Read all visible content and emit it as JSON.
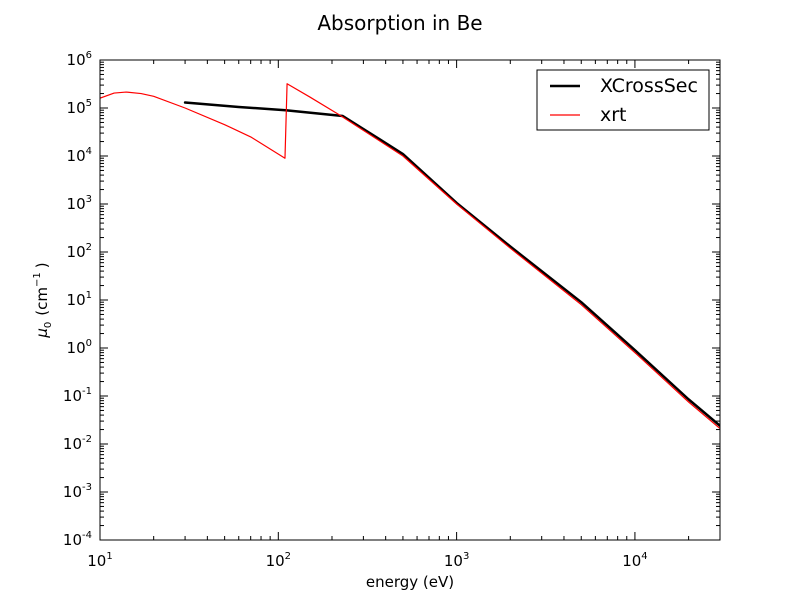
{
  "chart_data": {
    "type": "line",
    "title": "Absorption in Be",
    "xlabel": "energy (eV)",
    "ylabel": {
      "prefix": "μ",
      "subscript": "0",
      "unit": "(cm",
      "unit_exp": "−1",
      "unit_close": ")"
    },
    "x_scale": "log",
    "y_scale": "log",
    "xlim": [
      10,
      30000
    ],
    "ylim": [
      0.0001,
      1000000
    ],
    "grid": false,
    "legend_position": "top-right",
    "xticks": [
      {
        "value": 10,
        "base": "10",
        "exp": "1"
      },
      {
        "value": 100,
        "base": "10",
        "exp": "2"
      },
      {
        "value": 1000,
        "base": "10",
        "exp": "3"
      },
      {
        "value": 10000,
        "base": "10",
        "exp": "4"
      }
    ],
    "yticks": [
      {
        "value": 0.0001,
        "base": "10",
        "exp": "-4"
      },
      {
        "value": 0.001,
        "base": "10",
        "exp": "-3"
      },
      {
        "value": 0.01,
        "base": "10",
        "exp": "-2"
      },
      {
        "value": 0.1,
        "base": "10",
        "exp": "-1"
      },
      {
        "value": 1,
        "base": "10",
        "exp": "0"
      },
      {
        "value": 10,
        "base": "10",
        "exp": "1"
      },
      {
        "value": 100,
        "base": "10",
        "exp": "2"
      },
      {
        "value": 1000,
        "base": "10",
        "exp": "3"
      },
      {
        "value": 10000,
        "base": "10",
        "exp": "4"
      },
      {
        "value": 100000,
        "base": "10",
        "exp": "5"
      },
      {
        "value": 1000000,
        "base": "10",
        "exp": "6"
      }
    ],
    "series": [
      {
        "name": "XCrossSec",
        "color": "#000000",
        "line_width": "thick",
        "points": [
          {
            "x": 30,
            "y": 130000
          },
          {
            "x": 60,
            "y": 105000
          },
          {
            "x": 110,
            "y": 90000
          },
          {
            "x": 230,
            "y": 68000
          },
          {
            "x": 500,
            "y": 11000
          },
          {
            "x": 1000,
            "y": 1050
          },
          {
            "x": 2000,
            "y": 130
          },
          {
            "x": 5000,
            "y": 9
          },
          {
            "x": 10000,
            "y": 0.9
          },
          {
            "x": 20000,
            "y": 0.085
          },
          {
            "x": 30000,
            "y": 0.024
          }
        ]
      },
      {
        "name": "xrt",
        "color": "#ff0000",
        "line_width": "thin",
        "points": [
          {
            "x": 10,
            "y": 160000
          },
          {
            "x": 12,
            "y": 205000
          },
          {
            "x": 14,
            "y": 215000
          },
          {
            "x": 17,
            "y": 200000
          },
          {
            "x": 20,
            "y": 175000
          },
          {
            "x": 30,
            "y": 100000
          },
          {
            "x": 50,
            "y": 45000
          },
          {
            "x": 70,
            "y": 25000
          },
          {
            "x": 90,
            "y": 14000
          },
          {
            "x": 109,
            "y": 9000
          },
          {
            "x": 112,
            "y": 320000
          },
          {
            "x": 150,
            "y": 170000
          },
          {
            "x": 220,
            "y": 72000
          },
          {
            "x": 500,
            "y": 10000
          },
          {
            "x": 1000,
            "y": 1000
          },
          {
            "x": 2000,
            "y": 120
          },
          {
            "x": 5000,
            "y": 8
          },
          {
            "x": 10000,
            "y": 0.8
          },
          {
            "x": 20000,
            "y": 0.075
          },
          {
            "x": 30000,
            "y": 0.021
          }
        ]
      }
    ]
  }
}
